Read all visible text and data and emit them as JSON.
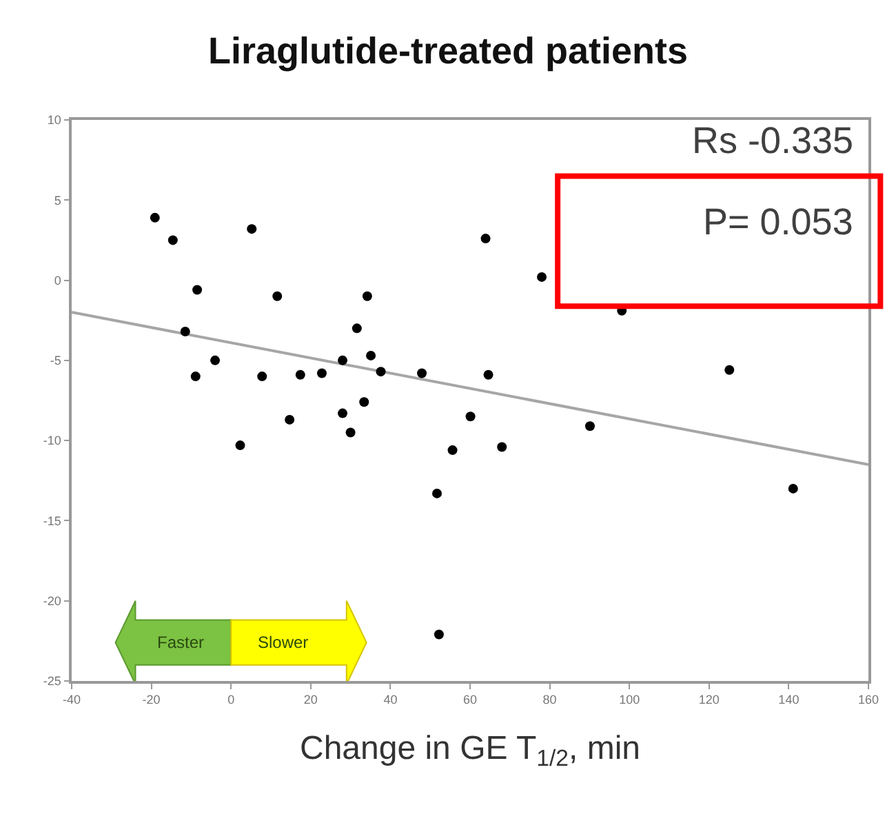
{
  "chart_data": {
    "type": "scatter",
    "title": "Liraglutide-treated patients",
    "xlabel": "Change in GE T$_{1/2}$, min",
    "annotations": [
      "Rs -0.335",
      "P= 0.053",
      "Faster",
      "Slower"
    ],
    "xlim": [
      -40,
      160
    ],
    "xticks": [
      -40,
      -20,
      0,
      20,
      40,
      60,
      80,
      100,
      120,
      140,
      160
    ],
    "ylim": [
      -25,
      10
    ],
    "yticks": [
      -25,
      -20,
      -15,
      -10,
      -5,
      0,
      5,
      10
    ],
    "grid": false,
    "marker": "circle",
    "series": [
      {
        "color": "#000000",
        "x": [
          -19.1,
          -14.6,
          5.2,
          63.9,
          78,
          98.1,
          -8.5,
          11.6,
          34.2,
          -11.5,
          31.6,
          -4,
          -8.9,
          7.8,
          17.4,
          22.8,
          28,
          35.1,
          37.6,
          47.9,
          64.6,
          125.1,
          14.7,
          28,
          33.4,
          30,
          2.3,
          60.1,
          55.6,
          68,
          90.1,
          51.7,
          141.1,
          52.2
        ],
        "values": [
          3.9,
          2.5,
          3.2,
          2.6,
          0.2,
          -1.9,
          -0.6,
          -1,
          -1,
          -3.2,
          -3,
          -5,
          -6,
          -6,
          -5.9,
          -5.8,
          -5,
          -4.7,
          -5.7,
          -5.8,
          -5.9,
          -5.6,
          -8.7,
          -8.3,
          -7.6,
          -9.5,
          -10.3,
          -8.5,
          -10.6,
          -10.4,
          -9.1,
          -13.3,
          -13,
          -22.1
        ]
      },
      {
        "type": "line",
        "marker": "none",
        "color": "#a6a6a6",
        "x": [
          -40,
          160
        ],
        "values": [
          -2,
          -11.5
        ]
      }
    ]
  }
}
